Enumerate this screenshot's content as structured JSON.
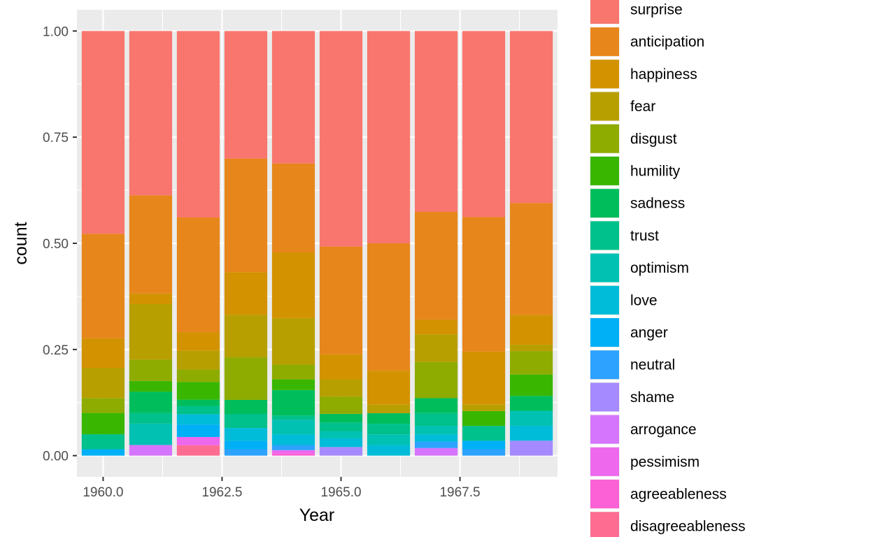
{
  "chart_data": {
    "type": "bar",
    "stacked": true,
    "position": "fill",
    "xlabel": "Year",
    "ylabel": "count",
    "xlim": [
      1959.45,
      1969.55
    ],
    "ylim": [
      -0.05,
      1.05
    ],
    "x_ticks": [
      1960.0,
      1962.5,
      1965.0,
      1967.5
    ],
    "x_tick_labels": [
      "1960.0",
      "1962.5",
      "1965.0",
      "1967.5"
    ],
    "y_ticks": [
      0,
      0.25,
      0.5,
      0.75,
      1.0
    ],
    "y_tick_labels": [
      "0.00",
      "0.25",
      "0.50",
      "0.75",
      "1.00"
    ],
    "grid": true,
    "legend_position": "right",
    "x": [
      1960,
      1961,
      1962,
      1963,
      1964,
      1965,
      1966,
      1967,
      1968,
      1969
    ],
    "series": [
      {
        "name": "disagreeableness",
        "color": "#FF6C91",
        "values": [
          0,
          0,
          0.025,
          0,
          0,
          0,
          0,
          0,
          0,
          0
        ]
      },
      {
        "name": "agreeableness",
        "color": "#FC61D5",
        "values": [
          0,
          0,
          0,
          0,
          0.005,
          0,
          0,
          0,
          0,
          0
        ]
      },
      {
        "name": "pessimism",
        "color": "#ED68ED",
        "values": [
          0,
          0,
          0.02,
          0,
          0.008,
          0,
          0,
          0,
          0,
          0
        ]
      },
      {
        "name": "arrogance",
        "color": "#D575FE",
        "values": [
          0,
          0.025,
          0,
          0,
          0,
          0,
          0,
          0.018,
          0,
          0
        ]
      },
      {
        "name": "shame",
        "color": "#A58AFF",
        "values": [
          0,
          0,
          0,
          0,
          0,
          0.02,
          0,
          0,
          0,
          0.035
        ]
      },
      {
        "name": "neutral",
        "color": "#2DA2FF",
        "values": [
          0,
          0,
          0,
          0.015,
          0.012,
          0,
          0,
          0.015,
          0.015,
          0
        ]
      },
      {
        "name": "anger",
        "color": "#00B0F6",
        "values": [
          0.015,
          0,
          0.03,
          0.02,
          0,
          0,
          0,
          0,
          0.02,
          0
        ]
      },
      {
        "name": "love",
        "color": "#00BCD8",
        "values": [
          0,
          0,
          0.025,
          0.03,
          0.025,
          0.02,
          0.025,
          0.017,
          0,
          0.035
        ]
      },
      {
        "name": "optimism",
        "color": "#00C1B2",
        "values": [
          0,
          0.05,
          0,
          0,
          0.035,
          0.017,
          0.025,
          0.02,
          0,
          0.035
        ]
      },
      {
        "name": "trust",
        "color": "#00C08B",
        "values": [
          0.035,
          0.025,
          0.02,
          0.033,
          0.01,
          0.02,
          0.025,
          0.03,
          0.035,
          0
        ]
      },
      {
        "name": "sadness",
        "color": "#00BD5C",
        "values": [
          0,
          0.05,
          0.015,
          0.033,
          0.06,
          0.02,
          0.025,
          0.035,
          0,
          0.035
        ]
      },
      {
        "name": "humility",
        "color": "#39B600",
        "values": [
          0.05,
          0.025,
          0.043,
          0,
          0.025,
          0,
          0,
          0,
          0.035,
          0.05
        ]
      },
      {
        "name": "disgust",
        "color": "#8EAB00",
        "values": [
          0.035,
          0.05,
          0.03,
          0.1,
          0.035,
          0.04,
          0,
          0.085,
          0,
          0.055
        ]
      },
      {
        "name": "fear",
        "color": "#B79F00",
        "values": [
          0.07,
          0.13,
          0.045,
          0.1,
          0.11,
          0.04,
          0.02,
          0.065,
          0.015,
          0.015
        ]
      },
      {
        "name": "happiness",
        "color": "#D39200",
        "values": [
          0.07,
          0.025,
          0.045,
          0.1,
          0.155,
          0.058,
          0.08,
          0.035,
          0.125,
          0.07
        ]
      },
      {
        "name": "anticipation",
        "color": "#E7861B",
        "values": [
          0.245,
          0.23,
          0.277,
          0.267,
          0.21,
          0.25,
          0.3,
          0.253,
          0.317,
          0.262
        ]
      },
      {
        "name": "surprise",
        "color": "#F8766D",
        "values": [
          0.475,
          0.385,
          0.45,
          0.3,
          0.313,
          0.5,
          0.5,
          0.425,
          0.438,
          0.403
        ]
      }
    ],
    "legend_order": [
      "surprise",
      "anticipation",
      "happiness",
      "fear",
      "disgust",
      "humility",
      "sadness",
      "trust",
      "optimism",
      "love",
      "anger",
      "neutral",
      "shame",
      "arrogance",
      "pessimism",
      "agreeableness",
      "disagreeableness"
    ]
  }
}
